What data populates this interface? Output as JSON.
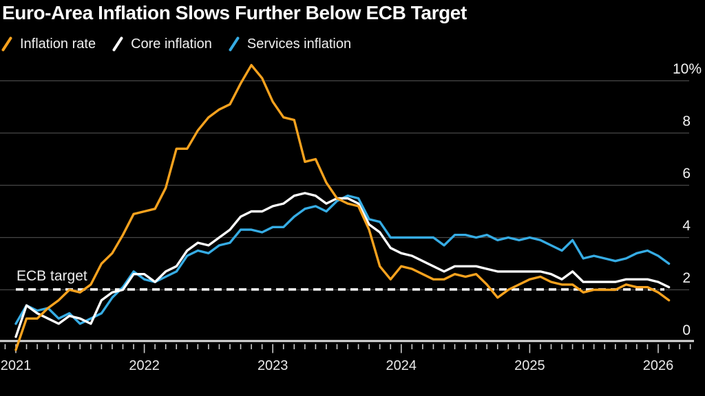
{
  "title": "Euro-Area Inflation Slows Further Below ECB Target",
  "legend": [
    {
      "label": "Inflation rate",
      "color": "#F7A21E"
    },
    {
      "label": "Core inflation",
      "color": "#FFFFFF"
    },
    {
      "label": "Services inflation",
      "color": "#36ACE4"
    }
  ],
  "target_annotation": "ECB target",
  "colors": {
    "background": "#000000",
    "gridline": "#474747",
    "axis_line": "#DCDCDC",
    "tick": "#CCCCCC",
    "target_line": "#FFFFFF",
    "text": "#F0F0F0"
  },
  "chart_data": {
    "type": "line",
    "title": "Euro-Area Inflation Slows Further Below ECB Target",
    "xlabel": "",
    "ylabel": "",
    "x_tick_labels": [
      "2021",
      "2022",
      "2023",
      "2024",
      "2025",
      "2026"
    ],
    "points_per_year": 12,
    "minor_tick_interval_months": 1,
    "y_ticks": [
      {
        "label": "10%",
        "value": 10
      },
      {
        "label": "8",
        "value": 8
      },
      {
        "label": "6",
        "value": 6
      },
      {
        "label": "4",
        "value": 4
      },
      {
        "label": "2",
        "value": 2
      },
      {
        "label": "0",
        "value": 0
      }
    ],
    "ylim": [
      -0.6,
      10.9
    ],
    "grid": "horizontal",
    "legend_position": "top-left",
    "reference_line": {
      "label": "ECB target",
      "value": 2.0,
      "style": "dashed",
      "color": "#FFFFFF"
    },
    "series": [
      {
        "name": "Inflation rate",
        "color": "#F7A21E",
        "values": [
          -0.3,
          0.9,
          0.9,
          1.3,
          1.6,
          2.0,
          1.9,
          2.2,
          3.0,
          3.4,
          4.1,
          4.9,
          5.0,
          5.1,
          5.9,
          7.4,
          7.4,
          8.1,
          8.6,
          8.9,
          9.1,
          9.9,
          10.6,
          10.1,
          9.2,
          8.6,
          8.5,
          6.9,
          7.0,
          6.1,
          5.5,
          5.3,
          5.2,
          4.3,
          2.9,
          2.4,
          2.9,
          2.8,
          2.6,
          2.4,
          2.4,
          2.6,
          2.5,
          2.6,
          2.2,
          1.7,
          2.0,
          2.2,
          2.4,
          2.5,
          2.3,
          2.2,
          2.2,
          1.9,
          2.0,
          2.0,
          2.0,
          2.2,
          2.1,
          2.1,
          1.9,
          1.6
        ]
      },
      {
        "name": "Core inflation",
        "color": "#FFFFFF",
        "values": [
          0.2,
          1.4,
          1.1,
          0.9,
          0.7,
          1.0,
          0.9,
          0.7,
          1.6,
          1.9,
          2.0,
          2.6,
          2.6,
          2.3,
          2.7,
          2.9,
          3.5,
          3.8,
          3.7,
          4.0,
          4.3,
          4.8,
          5.0,
          5.0,
          5.2,
          5.3,
          5.6,
          5.7,
          5.6,
          5.3,
          5.5,
          5.5,
          5.3,
          4.5,
          4.2,
          3.6,
          3.4,
          3.3,
          3.1,
          2.9,
          2.7,
          2.9,
          2.9,
          2.9,
          2.8,
          2.7,
          2.7,
          2.7,
          2.7,
          2.7,
          2.6,
          2.4,
          2.7,
          2.3,
          2.3,
          2.3,
          2.3,
          2.4,
          2.4,
          2.4,
          2.3,
          2.1
        ]
      },
      {
        "name": "Services inflation",
        "color": "#36ACE4",
        "values": [
          0.7,
          1.4,
          1.2,
          1.3,
          0.9,
          1.1,
          0.7,
          0.9,
          1.1,
          1.7,
          2.1,
          2.7,
          2.4,
          2.3,
          2.5,
          2.7,
          3.3,
          3.5,
          3.4,
          3.7,
          3.8,
          4.3,
          4.3,
          4.2,
          4.4,
          4.4,
          4.8,
          5.1,
          5.2,
          5.0,
          5.4,
          5.6,
          5.5,
          4.7,
          4.6,
          4.0,
          4.0,
          4.0,
          4.0,
          4.0,
          3.7,
          4.1,
          4.1,
          4.0,
          4.1,
          3.9,
          4.0,
          3.9,
          4.0,
          3.9,
          3.7,
          3.5,
          3.9,
          3.2,
          3.3,
          3.2,
          3.1,
          3.2,
          3.4,
          3.5,
          3.3,
          3.0
        ]
      }
    ]
  }
}
